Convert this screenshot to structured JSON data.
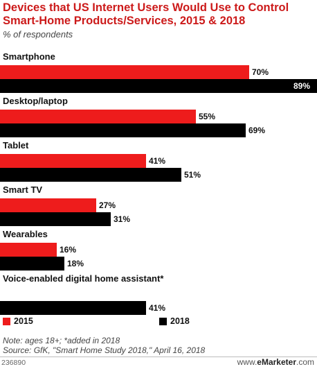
{
  "chart_data": {
    "type": "bar",
    "orientation": "horizontal",
    "title": "Devices that US Internet Users Would Use to Control Smart-Home Products/Services, 2015 & 2018",
    "subtitle": "% of respondents",
    "categories": [
      "Smartphone",
      "Desktop/laptop",
      "Tablet",
      "Smart TV",
      "Wearables",
      "Voice-enabled digital home assistant*"
    ],
    "series": [
      {
        "name": "2015",
        "color": "#ee1c1c",
        "values": [
          70,
          55,
          41,
          27,
          16,
          null
        ]
      },
      {
        "name": "2018",
        "color": "#000000",
        "values": [
          89,
          69,
          51,
          31,
          18,
          41
        ]
      }
    ],
    "value_suffix": "%",
    "xlim": [
      0,
      89
    ],
    "grid": false,
    "legend": "bottom"
  },
  "legend": {
    "label_2015": "2015",
    "label_2018": "2018"
  },
  "note": "Note: ages 18+; *added in 2018",
  "source": "Source: GfK, \"Smart Home Study 2018,\" April 16, 2018",
  "footer": {
    "id": "236890",
    "brand_prefix": "www.",
    "brand_name": "eMarketer",
    "brand_suffix": ".com"
  }
}
